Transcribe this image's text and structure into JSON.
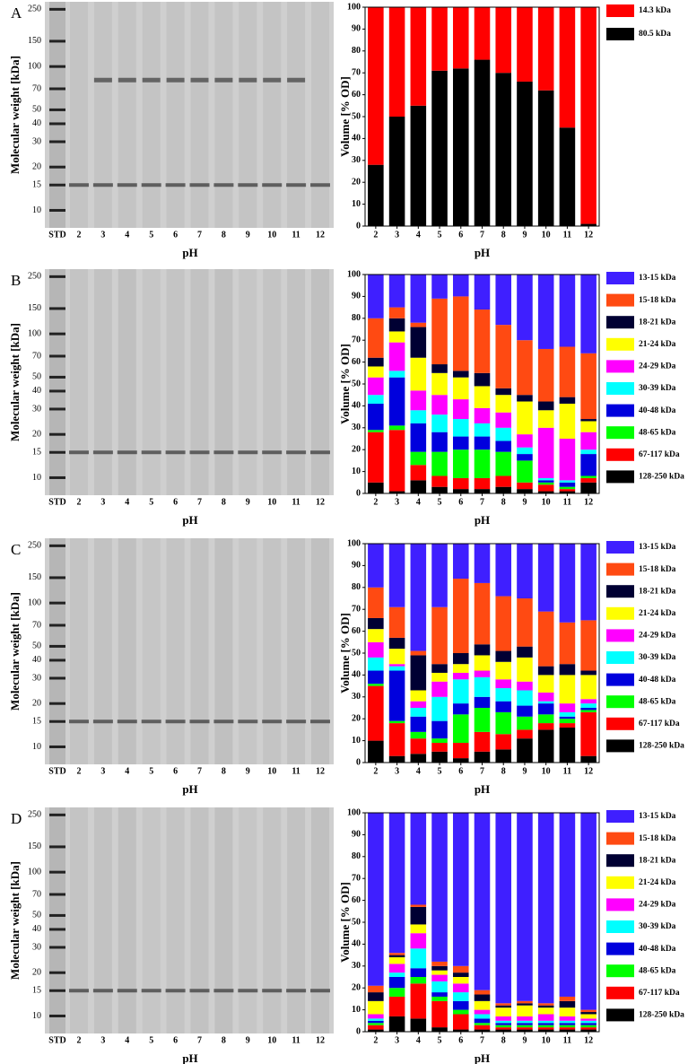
{
  "chart_data": [
    {
      "type": "bar",
      "stacked": true,
      "xlabel": "pH",
      "ylabel": "Volume [% OD]",
      "categories": [
        "2",
        "3",
        "4",
        "5",
        "6",
        "7",
        "8",
        "9",
        "10",
        "11",
        "12"
      ],
      "ylim": [
        0,
        100
      ],
      "yticks": [
        0,
        10,
        20,
        30,
        40,
        50,
        60,
        70,
        80,
        90,
        100
      ],
      "series": [
        {
          "name": "14.3 kDa",
          "color": "#ff0000",
          "values": [
            72,
            50,
            45,
            29,
            28,
            24,
            30,
            34,
            38,
            55,
            99
          ]
        },
        {
          "name": "80.5 kDa",
          "color": "#000000",
          "values": [
            28,
            50,
            55,
            71,
            72,
            76,
            70,
            66,
            62,
            45,
            1
          ]
        }
      ]
    },
    {
      "type": "bar",
      "stacked": true,
      "xlabel": "pH",
      "ylabel": "Volume [% OD]",
      "categories": [
        "2",
        "3",
        "4",
        "5",
        "6",
        "7",
        "8",
        "9",
        "10",
        "11",
        "12"
      ],
      "ylim": [
        0,
        100
      ],
      "yticks": [
        0,
        10,
        20,
        30,
        40,
        50,
        60,
        70,
        80,
        90,
        100
      ],
      "series": [
        {
          "name": "13-15 kDa",
          "color": "#3f1fff",
          "values": [
            20,
            15,
            22,
            11,
            10,
            16,
            23,
            30,
            34,
            33,
            36
          ]
        },
        {
          "name": "15-18 kDa",
          "color": "#ff4a12",
          "values": [
            18,
            5,
            2,
            30,
            34,
            29,
            29,
            25,
            24,
            23,
            30
          ]
        },
        {
          "name": "18-21 kDa",
          "color": "#000033",
          "values": [
            4,
            6,
            14,
            4,
            3,
            6,
            3,
            3,
            4,
            3,
            1
          ]
        },
        {
          "name": "21-24 kDa",
          "color": "#ffff00",
          "values": [
            5,
            5,
            15,
            10,
            10,
            10,
            8,
            15,
            8,
            16,
            5
          ]
        },
        {
          "name": "24-29 kDa",
          "color": "#ff00ff",
          "values": [
            8,
            13,
            9,
            9,
            9,
            7,
            7,
            6,
            23,
            19,
            8
          ]
        },
        {
          "name": "30-39 kDa",
          "color": "#00ffff",
          "values": [
            4,
            3,
            6,
            8,
            8,
            6,
            6,
            3,
            1,
            1,
            2
          ]
        },
        {
          "name": "40-48 kDa",
          "color": "#0000dd",
          "values": [
            12,
            22,
            13,
            9,
            6,
            6,
            5,
            3,
            1,
            2,
            10
          ]
        },
        {
          "name": "48-65 kDa",
          "color": "#00ff00",
          "values": [
            1,
            2,
            6,
            11,
            13,
            13,
            11,
            10,
            1,
            1,
            1
          ]
        },
        {
          "name": "67-117 kDa",
          "color": "#ff0000",
          "values": [
            23,
            28,
            7,
            5,
            5,
            5,
            5,
            3,
            3,
            1,
            2
          ]
        },
        {
          "name": "128-250 kDa",
          "color": "#000000",
          "values": [
            5,
            1,
            6,
            3,
            2,
            2,
            3,
            2,
            1,
            1,
            5
          ]
        }
      ]
    },
    {
      "type": "bar",
      "stacked": true,
      "xlabel": "pH",
      "ylabel": "Volume [% OD]",
      "categories": [
        "2",
        "3",
        "4",
        "5",
        "6",
        "7",
        "8",
        "9",
        "10",
        "11",
        "12"
      ],
      "ylim": [
        0,
        100
      ],
      "yticks": [
        0,
        10,
        20,
        30,
        40,
        50,
        60,
        70,
        80,
        90,
        100
      ],
      "series": [
        {
          "name": "13-15 kDa",
          "color": "#3f1fff",
          "values": [
            20,
            29,
            49,
            29,
            16,
            18,
            24,
            25,
            31,
            36,
            35
          ]
        },
        {
          "name": "15-18 kDa",
          "color": "#ff4a12",
          "values": [
            14,
            14,
            2,
            26,
            34,
            28,
            25,
            22,
            25,
            19,
            23
          ]
        },
        {
          "name": "18-21 kDa",
          "color": "#000033",
          "values": [
            5,
            5,
            16,
            4,
            5,
            5,
            5,
            5,
            4,
            5,
            2
          ]
        },
        {
          "name": "21-24 kDa",
          "color": "#ffff00",
          "values": [
            6,
            7,
            5,
            4,
            4,
            7,
            8,
            11,
            8,
            13,
            11
          ]
        },
        {
          "name": "24-29 kDa",
          "color": "#ff00ff",
          "values": [
            7,
            1,
            3,
            7,
            3,
            3,
            4,
            4,
            4,
            4,
            2
          ]
        },
        {
          "name": "30-39 kDa",
          "color": "#00ffff",
          "values": [
            6,
            2,
            4,
            11,
            11,
            9,
            6,
            7,
            1,
            2,
            2
          ]
        },
        {
          "name": "40-48 kDa",
          "color": "#0000dd",
          "values": [
            6,
            23,
            7,
            8,
            5,
            5,
            5,
            5,
            5,
            1,
            1
          ]
        },
        {
          "name": "48-65 kDa",
          "color": "#00ff00",
          "values": [
            1,
            1,
            3,
            2,
            13,
            11,
            10,
            6,
            4,
            2,
            1
          ]
        },
        {
          "name": "67-117 kDa",
          "color": "#ff0000",
          "values": [
            25,
            15,
            7,
            4,
            7,
            9,
            7,
            4,
            3,
            2,
            20
          ]
        },
        {
          "name": "128-250 kDa",
          "color": "#000000",
          "values": [
            10,
            3,
            4,
            5,
            2,
            5,
            6,
            11,
            15,
            16,
            3
          ]
        }
      ]
    },
    {
      "type": "bar",
      "stacked": true,
      "xlabel": "pH",
      "ylabel": "Volume [% OD]",
      "categories": [
        "2",
        "3",
        "4",
        "5",
        "6",
        "7",
        "8",
        "9",
        "10",
        "11",
        "12"
      ],
      "ylim": [
        0,
        100
      ],
      "yticks": [
        0,
        10,
        20,
        30,
        40,
        50,
        60,
        70,
        80,
        90,
        100
      ],
      "series": [
        {
          "name": "13-15 kDa",
          "color": "#3f1fff",
          "values": [
            79,
            64,
            42,
            68,
            70,
            81,
            87,
            86,
            87,
            84,
            90
          ]
        },
        {
          "name": "15-18 kDa",
          "color": "#ff4a12",
          "values": [
            3,
            1,
            1,
            2,
            3,
            2,
            1,
            1,
            1,
            2,
            1
          ]
        },
        {
          "name": "18-21 kDa",
          "color": "#000033",
          "values": [
            4,
            1,
            8,
            2,
            2,
            3,
            1,
            1,
            1,
            3,
            1
          ]
        },
        {
          "name": "21-24 kDa",
          "color": "#ffff00",
          "values": [
            6,
            3,
            4,
            2,
            3,
            4,
            4,
            5,
            3,
            4,
            2
          ]
        },
        {
          "name": "24-29 kDa",
          "color": "#ff00ff",
          "values": [
            2,
            4,
            7,
            3,
            4,
            2,
            2,
            2,
            3,
            2,
            1
          ]
        },
        {
          "name": "30-39 kDa",
          "color": "#00ffff",
          "values": [
            1,
            2,
            9,
            5,
            4,
            2,
            1,
            1,
            1,
            1,
            1
          ]
        },
        {
          "name": "40-48 kDa",
          "color": "#0000dd",
          "values": [
            1,
            5,
            4,
            2,
            4,
            2,
            1,
            1,
            1,
            1,
            1
          ]
        },
        {
          "name": "48-65 kDa",
          "color": "#00ff00",
          "values": [
            1,
            4,
            3,
            2,
            2,
            1,
            1,
            1,
            1,
            1,
            1
          ]
        },
        {
          "name": "67-117 kDa",
          "color": "#ff0000",
          "values": [
            2,
            9,
            16,
            12,
            7,
            2,
            1,
            1,
            1,
            1,
            1
          ]
        },
        {
          "name": "128-250 kDa",
          "color": "#000000",
          "values": [
            1,
            7,
            6,
            2,
            1,
            1,
            1,
            1,
            1,
            1,
            1
          ]
        }
      ]
    }
  ],
  "gels": [
    {
      "panel": "A",
      "ylabel": "Molecular weight [kDa]",
      "xlabel": "pH",
      "lanes": [
        "STD",
        "2",
        "3",
        "4",
        "5",
        "6",
        "7",
        "8",
        "9",
        "10",
        "11",
        "12"
      ],
      "log": true,
      "ylim": [
        8,
        270
      ],
      "yticks": [
        250,
        150,
        100,
        70,
        50,
        40,
        30,
        20,
        15,
        10
      ]
    },
    {
      "panel": "B",
      "ylabel": "Molecular weight [kDa]",
      "xlabel": "pH",
      "lanes": [
        "STD",
        "2",
        "3",
        "4",
        "5",
        "6",
        "7",
        "8",
        "9",
        "10",
        "11",
        "12"
      ],
      "log": true,
      "ylim": [
        8,
        270
      ],
      "yticks": [
        250,
        150,
        100,
        70,
        50,
        40,
        30,
        20,
        15,
        10
      ]
    },
    {
      "panel": "C",
      "ylabel": "Molecular weight [kDa]",
      "xlabel": "pH",
      "lanes": [
        "STD",
        "2",
        "3",
        "4",
        "5",
        "6",
        "7",
        "8",
        "9",
        "10",
        "11",
        "12"
      ],
      "log": true,
      "ylim": [
        8,
        270
      ],
      "yticks": [
        250,
        150,
        100,
        70,
        50,
        40,
        30,
        20,
        15,
        10
      ]
    },
    {
      "panel": "D",
      "ylabel": "Molecular weight [kDa]",
      "xlabel": "pH",
      "lanes": [
        "STD",
        "2",
        "3",
        "4",
        "5",
        "6",
        "7",
        "8",
        "9",
        "10",
        "11",
        "12"
      ],
      "log": true,
      "ylim": [
        8,
        270
      ],
      "yticks": [
        250,
        150,
        100,
        70,
        50,
        40,
        30,
        20,
        15,
        10
      ]
    }
  ]
}
